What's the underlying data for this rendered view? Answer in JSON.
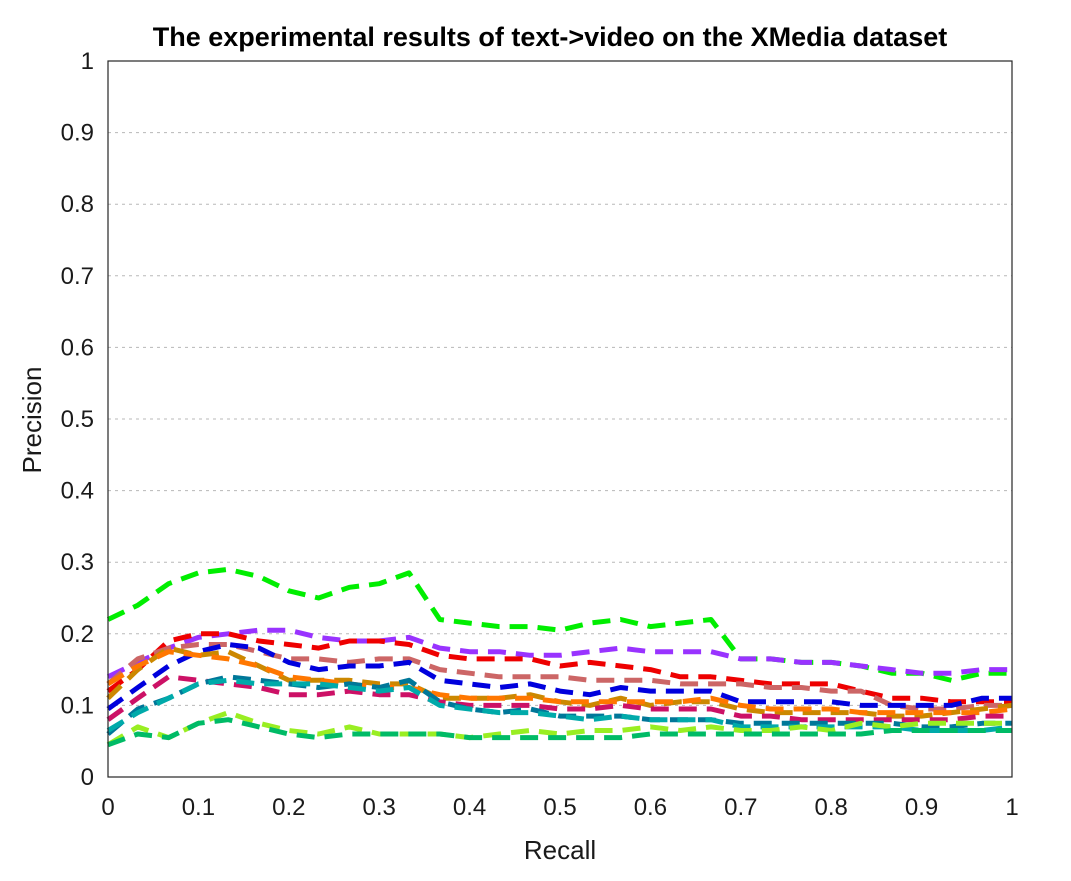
{
  "chart_data": {
    "type": "line",
    "title": "The experimental results of text->video on the XMedia dataset",
    "xlabel": "Recall",
    "ylabel": "Precision",
    "xlim": [
      0,
      1
    ],
    "ylim": [
      0,
      1
    ],
    "xticks": [
      "0",
      "0.1",
      "0.2",
      "0.3",
      "0.4",
      "0.5",
      "0.6",
      "0.7",
      "0.8",
      "0.9",
      "1"
    ],
    "yticks": [
      "0",
      "0.1",
      "0.2",
      "0.3",
      "0.4",
      "0.5",
      "0.6",
      "0.7",
      "0.8",
      "0.9",
      "1"
    ],
    "grid": "horizontal dotted",
    "legend": "none",
    "x": [
      0,
      0.033,
      0.067,
      0.1,
      0.133,
      0.167,
      0.2,
      0.233,
      0.267,
      0.3,
      0.333,
      0.367,
      0.4,
      0.433,
      0.467,
      0.5,
      0.533,
      0.567,
      0.6,
      0.633,
      0.667,
      0.7,
      0.733,
      0.767,
      0.8,
      0.833,
      0.867,
      0.9,
      0.933,
      0.967,
      1
    ],
    "series": [
      {
        "color": "#00ee00",
        "values": [
          0.22,
          0.24,
          0.27,
          0.285,
          0.29,
          0.28,
          0.26,
          0.25,
          0.265,
          0.27,
          0.285,
          0.22,
          0.215,
          0.21,
          0.21,
          0.205,
          0.215,
          0.22,
          0.21,
          0.215,
          0.22,
          0.165,
          0.165,
          0.16,
          0.16,
          0.155,
          0.145,
          0.145,
          0.135,
          0.145,
          0.145
        ]
      },
      {
        "color": "#9933ff",
        "values": [
          0.14,
          0.16,
          0.18,
          0.195,
          0.2,
          0.205,
          0.205,
          0.195,
          0.19,
          0.19,
          0.195,
          0.18,
          0.175,
          0.175,
          0.17,
          0.17,
          0.175,
          0.18,
          0.175,
          0.175,
          0.175,
          0.165,
          0.165,
          0.16,
          0.16,
          0.155,
          0.15,
          0.145,
          0.145,
          0.15,
          0.15
        ]
      },
      {
        "color": "#ee0000",
        "values": [
          0.12,
          0.15,
          0.19,
          0.2,
          0.2,
          0.19,
          0.185,
          0.18,
          0.19,
          0.19,
          0.185,
          0.17,
          0.165,
          0.165,
          0.165,
          0.155,
          0.16,
          0.155,
          0.15,
          0.14,
          0.14,
          0.135,
          0.13,
          0.13,
          0.13,
          0.12,
          0.11,
          0.11,
          0.105,
          0.105,
          0.105
        ]
      },
      {
        "color": "#cc6666",
        "values": [
          0.13,
          0.165,
          0.18,
          0.185,
          0.185,
          0.175,
          0.165,
          0.165,
          0.16,
          0.165,
          0.165,
          0.15,
          0.145,
          0.14,
          0.14,
          0.14,
          0.135,
          0.135,
          0.135,
          0.13,
          0.13,
          0.13,
          0.125,
          0.125,
          0.12,
          0.12,
          0.1,
          0.095,
          0.095,
          0.1,
          0.1
        ]
      },
      {
        "color": "#0000dd",
        "values": [
          0.095,
          0.125,
          0.155,
          0.175,
          0.185,
          0.18,
          0.16,
          0.15,
          0.155,
          0.155,
          0.16,
          0.135,
          0.13,
          0.125,
          0.13,
          0.12,
          0.115,
          0.125,
          0.12,
          0.12,
          0.12,
          0.105,
          0.105,
          0.105,
          0.105,
          0.1,
          0.1,
          0.1,
          0.1,
          0.11,
          0.11
        ]
      },
      {
        "color": "#cc8800",
        "values": [
          0.11,
          0.15,
          0.18,
          0.17,
          0.175,
          0.155,
          0.135,
          0.135,
          0.135,
          0.13,
          0.13,
          0.11,
          0.11,
          0.11,
          0.115,
          0.105,
          0.1,
          0.11,
          0.1,
          0.105,
          0.105,
          0.095,
          0.09,
          0.09,
          0.09,
          0.09,
          0.085,
          0.085,
          0.09,
          0.095,
          0.1
        ]
      },
      {
        "color": "#ff7700",
        "values": [
          0.13,
          0.155,
          0.175,
          0.17,
          0.165,
          0.155,
          0.14,
          0.135,
          0.13,
          0.125,
          0.125,
          0.115,
          0.11,
          0.11,
          0.11,
          0.105,
          0.105,
          0.105,
          0.105,
          0.105,
          0.11,
          0.1,
          0.095,
          0.095,
          0.095,
          0.09,
          0.09,
          0.09,
          0.09,
          0.09,
          0.095
        ]
      },
      {
        "color": "#cc1166",
        "values": [
          0.08,
          0.11,
          0.14,
          0.135,
          0.13,
          0.125,
          0.115,
          0.115,
          0.12,
          0.115,
          0.115,
          0.105,
          0.1,
          0.1,
          0.1,
          0.095,
          0.095,
          0.1,
          0.095,
          0.095,
          0.095,
          0.085,
          0.085,
          0.08,
          0.08,
          0.08,
          0.08,
          0.08,
          0.08,
          0.085,
          0.085
        ]
      },
      {
        "color": "#007799",
        "values": [
          0.06,
          0.095,
          0.11,
          0.13,
          0.14,
          0.135,
          0.13,
          0.125,
          0.13,
          0.125,
          0.135,
          0.105,
          0.095,
          0.09,
          0.095,
          0.085,
          0.085,
          0.085,
          0.08,
          0.08,
          0.08,
          0.075,
          0.075,
          0.075,
          0.075,
          0.075,
          0.075,
          0.07,
          0.07,
          0.075,
          0.075
        ]
      },
      {
        "color": "#00aaaa",
        "values": [
          0.065,
          0.09,
          0.11,
          0.13,
          0.135,
          0.13,
          0.13,
          0.13,
          0.125,
          0.12,
          0.125,
          0.1,
          0.095,
          0.09,
          0.09,
          0.085,
          0.08,
          0.085,
          0.08,
          0.08,
          0.08,
          0.07,
          0.07,
          0.07,
          0.07,
          0.07,
          0.07,
          0.065,
          0.065,
          0.065,
          0.07
        ]
      },
      {
        "color": "#99ee22",
        "values": [
          0.045,
          0.07,
          0.055,
          0.075,
          0.09,
          0.075,
          0.065,
          0.06,
          0.07,
          0.06,
          0.06,
          0.06,
          0.055,
          0.06,
          0.065,
          0.06,
          0.065,
          0.065,
          0.07,
          0.065,
          0.07,
          0.065,
          0.065,
          0.07,
          0.065,
          0.075,
          0.07,
          0.075,
          0.075,
          0.075,
          0.075
        ]
      },
      {
        "color": "#00bb66",
        "values": [
          0.045,
          0.06,
          0.055,
          0.075,
          0.08,
          0.07,
          0.06,
          0.055,
          0.06,
          0.06,
          0.06,
          0.06,
          0.055,
          0.055,
          0.055,
          0.055,
          0.055,
          0.055,
          0.06,
          0.06,
          0.06,
          0.06,
          0.06,
          0.06,
          0.06,
          0.06,
          0.065,
          0.065,
          0.065,
          0.065,
          0.065
        ]
      }
    ]
  }
}
